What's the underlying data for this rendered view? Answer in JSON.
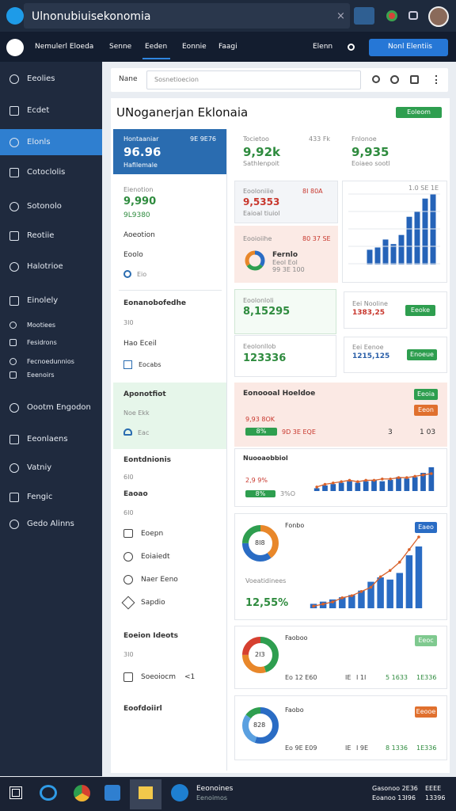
{
  "window": {
    "title": "Ulnonubiuisekonomia",
    "close": "×"
  },
  "nav": {
    "items": [
      "Nemulerl Eloeda",
      "Senne",
      "Eeden",
      "Eonnie",
      "Faagi"
    ],
    "right": "Elenn",
    "button": "Nonl Elentiis"
  },
  "sidebar": {
    "items": [
      "Eeolies",
      "Ecdet",
      "Elonls",
      "Cotoclolis",
      "Sotonolo",
      "Reotiie",
      "Halotrioe",
      "Einolely",
      "Mootiees",
      "Fesidrons",
      "Fecnoedunnios",
      "Eeenoirs",
      "Oootm Engodon",
      "Eeonlaens",
      "Vatniy",
      "Fengic",
      "Gedo Alinns"
    ]
  },
  "toolbar": {
    "label": "Nane",
    "search": "Sosnetioecion"
  },
  "dashboard": {
    "title": "UNoganerjan Eklonaia",
    "button": "Eoleom"
  },
  "left": {
    "card": {
      "title": "Hontaaniar",
      "badge": "9E 9E76",
      "value": "96.96",
      "sub": "Hafilemale"
    },
    "block1": {
      "label": "Eienotion",
      "value": "9,990",
      "sub": "9L9380",
      "items": [
        "Aoeotion",
        "Eoolo",
        "Eio"
      ]
    },
    "block2": {
      "title": "Eonanobofedhe",
      "sub": "3I0",
      "items": [
        "Hao Eceil",
        "Eocabs"
      ]
    },
    "block3": {
      "title": "Aponotfiot",
      "sub": "Noe Ekk",
      "item": "Eac"
    },
    "block4": {
      "title": "Eontdnionis",
      "sub": "6I0",
      "label": "Eaoao",
      "sub2": "6I0",
      "items": [
        "Eoepn",
        "Eoiaiedt",
        "Naer Eeno",
        "Sapdio"
      ]
    },
    "block5": {
      "title": "Eoeion Ideots",
      "sub": "3I0",
      "item": "Soeoiocm",
      "aux": "<1"
    },
    "block6": {
      "title": "Eoofdoiirl"
    }
  },
  "stats": [
    {
      "label": "Tocietoo",
      "aux": "433 Fk",
      "value": "9,92k",
      "sub": "Sathlenpoit"
    },
    {
      "label": "Fnlonoe",
      "value": "9,935",
      "sub": "Eoiaeo sootl"
    }
  ],
  "cards": [
    {
      "label": "Eooloniiie",
      "badge": "8I 80A",
      "value": "9,5353",
      "sub": "Eaioal tiuiol"
    },
    {
      "label": "Eooioiihe",
      "badge": "80 37 SE",
      "title": "Fernlo",
      "sub": "Eeol Eol",
      "aux": "99 3E 100"
    }
  ],
  "chart1": {
    "label": "1.0 SE 1E",
    "color": "#2563b8",
    "values": [
      13,
      15,
      22,
      18,
      26,
      42,
      47,
      58,
      62
    ]
  },
  "donut1": {
    "colors": [
      "#2a6cc4",
      "#2e9e4f",
      "#e8872a"
    ],
    "values": [
      35,
      30,
      35
    ]
  },
  "row3": [
    {
      "label": "Eoolonloli",
      "value": "8,15295"
    },
    {
      "label": "Eei Nooline",
      "value": "1383,25",
      "button": "Eeoke"
    },
    {
      "label": "Eeolonllob",
      "value": "123336"
    },
    {
      "label": "Eei Eenoe",
      "value": "1215,125",
      "button": "Enoeue"
    }
  ],
  "banner": {
    "title": "Eonoooal Hoeldoe",
    "button1": "Eeoia",
    "button2": "Eeon",
    "sub": "9,93 8OK",
    "pill": "8%",
    "text": "9D 3E EQE",
    "aux": [
      "3",
      "1 03"
    ]
  },
  "chart2": {
    "title": "Nuooaobbiol",
    "sub": "2,9 9%",
    "pill": "8%",
    "aux": "3%O",
    "color": "#2563b8",
    "line_color": "#d9622b",
    "values": [
      2,
      4,
      5,
      6,
      7,
      6,
      7,
      8,
      7,
      8,
      10,
      9,
      10,
      13,
      17
    ],
    "line": [
      3,
      5,
      6,
      7,
      8,
      7,
      8,
      8,
      9,
      9,
      10,
      10,
      11,
      12,
      13
    ]
  },
  "chart3": {
    "title": "Fonbo",
    "button": "Eaeo",
    "donut": {
      "label": "8I8",
      "colors": [
        "#e8872a",
        "#2a6cc4",
        "#2e9e4f"
      ],
      "values": [
        40,
        35,
        25
      ]
    },
    "caption": "Voeatidinees",
    "value": "12,55%",
    "color": "#2a6cc4",
    "line_color": "#d9622b",
    "bars": [
      2,
      3,
      4,
      5,
      6,
      8,
      12,
      14,
      13,
      16,
      24,
      28
    ],
    "line": [
      1,
      2,
      3,
      5,
      6,
      8,
      10,
      15,
      18,
      22,
      28,
      34
    ]
  },
  "card4": {
    "title": "Faoboo",
    "button": "Eeoc",
    "donut": {
      "label": "2I3",
      "colors": [
        "#2e9e4f",
        "#e8872a",
        "#d64030"
      ],
      "values": [
        45,
        30,
        25
      ]
    },
    "footer": [
      "Eo 12 E60",
      "IE",
      "I 1I",
      "5 1633",
      "1E336"
    ]
  },
  "card5": {
    "title": "Faobo",
    "button": "Eeooe",
    "donut": {
      "label": "828",
      "colors": [
        "#2a6cc4",
        "#5aa0e0",
        "#2e9e4f"
      ],
      "values": [
        55,
        30,
        15
      ]
    },
    "footer": [
      "Eo 9E E09",
      "IE",
      "I 9E",
      "8 1336",
      "1E336"
    ]
  },
  "taskbar": {
    "app": "Eeonoines",
    "sub": "Eenoimos",
    "clock": "Gasonoo 2E36",
    "date": "Eoanoo 13I96",
    "sys": "EEEE",
    "sys2": "13396"
  }
}
